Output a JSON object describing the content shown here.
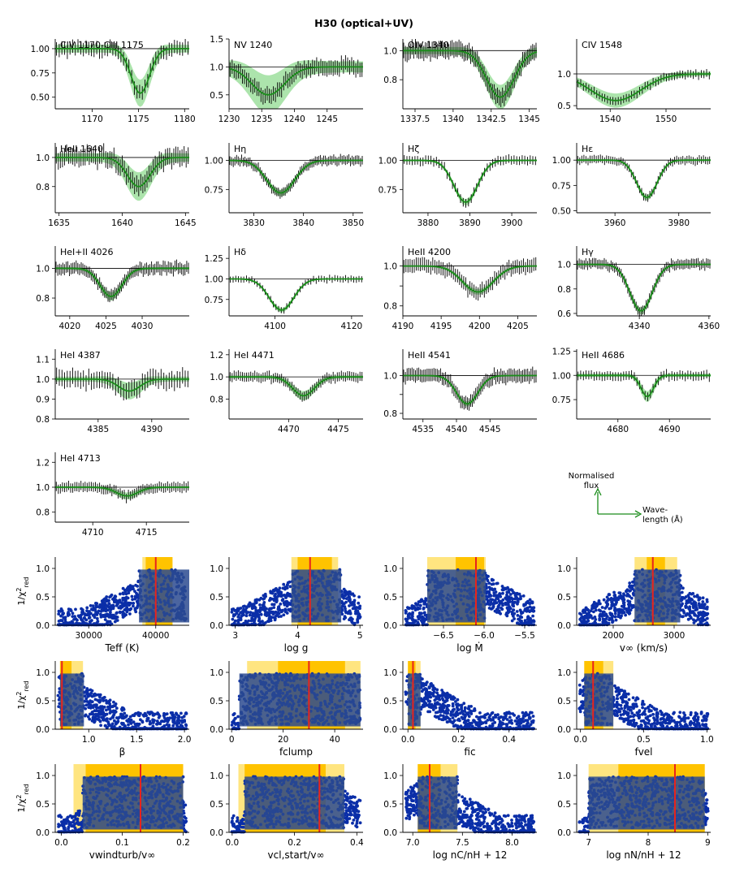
{
  "title": "H30 (optical+UV)",
  "colors": {
    "model": "#1a8c1a",
    "band": "#7fd67f",
    "points": "#0a2ea8",
    "best": "#e8231c",
    "band_inner": "#ffc300",
    "band_outer": "#ffe580"
  },
  "legend": {
    "y_label": "Normalised flux",
    "x_label": "Wavelength (Å)",
    "y_lines": [
      "Normalised",
      "flux"
    ],
    "x_lines": [
      "Wave-",
      "length (Å)"
    ]
  },
  "fit_ylabel": "1/χ²red",
  "chart_data": [
    {
      "type": "line",
      "title": "CIV 1170-CIII 1175",
      "xlim": [
        1166,
        1180.5
      ],
      "ylim": [
        0.38,
        1.1
      ],
      "xticks": [
        1170,
        1175,
        1180
      ],
      "yticks": [
        0.5,
        0.75,
        1.0
      ],
      "ytick_labels": [
        "0.50",
        "0.75",
        "1.00"
      ],
      "center": 1175.2,
      "depth": 0.46,
      "width": 1.0,
      "band": 0.1
    },
    {
      "type": "line",
      "title": "NV 1240",
      "xlim": [
        1230,
        1250.5
      ],
      "ylim": [
        0.25,
        1.5
      ],
      "xticks": [
        1230,
        1235,
        1240,
        1245
      ],
      "yticks": [
        0.5,
        1.0,
        1.5
      ],
      "ytick_labels": [
        "0.5",
        "1.0",
        "1.5"
      ],
      "center": 1236,
      "depth": 0.5,
      "width": 2.5,
      "band": 0.25
    },
    {
      "type": "line",
      "title": "OIV 1340",
      "xlim": [
        1336.7,
        1345.5
      ],
      "ylim": [
        0.6,
        1.08
      ],
      "xticks": [
        1337.5,
        1340.0,
        1342.5,
        1345.0
      ],
      "yticks": [
        0.8,
        1.0
      ],
      "ytick_labels": [
        "0.8",
        "1.0"
      ],
      "center": 1343.1,
      "depth": 0.32,
      "width": 0.9,
      "band": 0.06
    },
    {
      "type": "line",
      "title": "CIV 1548",
      "xlim": [
        1534,
        1558
      ],
      "ylim": [
        0.45,
        1.55
      ],
      "xticks": [
        1540,
        1550
      ],
      "yticks": [
        0.5,
        1.0
      ],
      "ytick_labels": [
        "0.5",
        "1.0"
      ],
      "center": 1541,
      "depth": 0.42,
      "width": 4.5,
      "band": 0.08
    },
    {
      "type": "line",
      "title": "HeII 1640",
      "xlim": [
        1634.7,
        1645.3
      ],
      "ylim": [
        0.62,
        1.1
      ],
      "xticks": [
        1635,
        1640,
        1645
      ],
      "yticks": [
        0.8,
        1.0
      ],
      "ytick_labels": [
        "0.8",
        "1.0"
      ],
      "center": 1641.3,
      "depth": 0.2,
      "width": 0.9,
      "band": 0.07
    },
    {
      "type": "line",
      "title": "Hη",
      "xlim": [
        3825,
        3852
      ],
      "ylim": [
        0.55,
        1.15
      ],
      "xticks": [
        3830,
        3840,
        3850
      ],
      "yticks": [
        0.75,
        1.0
      ],
      "ytick_labels": [
        "0.75",
        "1.00"
      ],
      "center": 3835.4,
      "depth": 0.28,
      "width": 2.8,
      "band": 0.02
    },
    {
      "type": "line",
      "title": "Hζ",
      "xlim": [
        3874,
        3906
      ],
      "ylim": [
        0.55,
        1.15
      ],
      "xticks": [
        3880,
        3890,
        3900
      ],
      "yticks": [
        0.75,
        1.0
      ],
      "ytick_labels": [
        "0.75",
        "1.00"
      ],
      "center": 3889,
      "depth": 0.36,
      "width": 2.8,
      "band": 0.02
    },
    {
      "type": "line",
      "title": "Hε",
      "xlim": [
        3948,
        3990
      ],
      "ylim": [
        0.48,
        1.17
      ],
      "xticks": [
        3960,
        3980
      ],
      "yticks": [
        0.5,
        0.75,
        1.0
      ],
      "ytick_labels": [
        "0.50",
        "0.75",
        "1.00"
      ],
      "center": 3970,
      "depth": 0.37,
      "width": 3.2,
      "band": 0.02
    },
    {
      "type": "line",
      "title": "HeI+II 4026",
      "xlim": [
        4018,
        4036.5
      ],
      "ylim": [
        0.68,
        1.15
      ],
      "xticks": [
        4020,
        4025,
        4030
      ],
      "yticks": [
        0.8,
        1.0
      ],
      "ytick_labels": [
        "0.8",
        "1.0"
      ],
      "center": 4025.7,
      "depth": 0.19,
      "width": 1.5,
      "band": 0.02
    },
    {
      "type": "line",
      "title": "Hδ",
      "xlim": [
        4088,
        4123
      ],
      "ylim": [
        0.55,
        1.4
      ],
      "xticks": [
        4100,
        4120
      ],
      "yticks": [
        0.75,
        1.0,
        1.25
      ],
      "ytick_labels": [
        "0.75",
        "1.00",
        "1.25"
      ],
      "center": 4101.7,
      "depth": 0.38,
      "width": 3.2,
      "band": 0.02
    },
    {
      "type": "line",
      "title": "HeII 4200",
      "xlim": [
        4190,
        4207.5
      ],
      "ylim": [
        0.75,
        1.1
      ],
      "xticks": [
        4190,
        4195,
        4200,
        4205
      ],
      "yticks": [
        0.8,
        0.9,
        1.0
      ],
      "ytick_labels": [
        "0.8",
        "",
        "1.0"
      ],
      "center": 4199.8,
      "depth": 0.13,
      "width": 2.0,
      "band": 0.01
    },
    {
      "type": "line",
      "title": "Hγ",
      "xlim": [
        4322,
        4360.5
      ],
      "ylim": [
        0.58,
        1.15
      ],
      "xticks": [
        4340,
        4360
      ],
      "yticks": [
        0.6,
        0.8,
        1.0
      ],
      "ytick_labels": [
        "0.6",
        "0.8",
        "1.0"
      ],
      "center": 4340.5,
      "depth": 0.38,
      "width": 3.2,
      "band": 0.02
    },
    {
      "type": "line",
      "title": "HeI 4387",
      "xlim": [
        4381,
        4393.5
      ],
      "ylim": [
        0.8,
        1.15
      ],
      "xticks": [
        4385,
        4390
      ],
      "yticks": [
        0.8,
        0.9,
        1.0,
        1.1
      ],
      "ytick_labels": [
        "0.8",
        "0.9",
        "1.0",
        "1.1"
      ],
      "center": 4387.9,
      "depth": 0.06,
      "width": 1.0,
      "band": 0.03
    },
    {
      "type": "line",
      "title": "HeI 4471",
      "xlim": [
        4464,
        4477.5
      ],
      "ylim": [
        0.62,
        1.25
      ],
      "xticks": [
        4470,
        4475
      ],
      "yticks": [
        0.8,
        1.0,
        1.2
      ],
      "ytick_labels": [
        "0.8",
        "1.0",
        "1.2"
      ],
      "center": 4471.5,
      "depth": 0.17,
      "width": 1.1,
      "band": 0.03
    },
    {
      "type": "line",
      "title": "HeII 4541",
      "xlim": [
        4532,
        4552
      ],
      "ylim": [
        0.77,
        1.14
      ],
      "xticks": [
        4535,
        4540,
        4545
      ],
      "yticks": [
        0.8,
        0.9,
        1.0
      ],
      "ytick_labels": [
        "0.8",
        "",
        "1.0"
      ],
      "center": 4541.6,
      "depth": 0.15,
      "width": 1.6,
      "band": 0.01
    },
    {
      "type": "line",
      "title": "HeII 4686",
      "xlim": [
        4672,
        4698
      ],
      "ylim": [
        0.55,
        1.27
      ],
      "xticks": [
        4680,
        4690
      ],
      "yticks": [
        0.75,
        1.0,
        1.25
      ],
      "ytick_labels": [
        "0.75",
        "1.00",
        "1.25"
      ],
      "center": 4685.7,
      "depth": 0.22,
      "width": 1.2,
      "band": 0.04
    },
    {
      "type": "line",
      "title": "HeI 4713",
      "xlim": [
        4706.5,
        4719
      ],
      "ylim": [
        0.72,
        1.28
      ],
      "xticks": [
        4710,
        4715
      ],
      "yticks": [
        0.8,
        1.0,
        1.2
      ],
      "ytick_labels": [
        "0.8",
        "1.0",
        "1.2"
      ],
      "center": 4713.2,
      "depth": 0.07,
      "width": 1.0,
      "band": 0.02
    },
    {
      "type": "scatter",
      "xlabel": "Teff (K)",
      "xlim": [
        25000,
        45000
      ],
      "ylim": [
        0,
        1.2
      ],
      "xticks": [
        30000,
        40000
      ],
      "xtick_labels": [
        "30000",
        "40000"
      ],
      "yticks": [
        0,
        0.5,
        1.0
      ],
      "ytick_labels": [
        "0.0",
        "0.5",
        "1.0"
      ],
      "best": 40000,
      "inner": [
        38500,
        42500
      ],
      "outer": [
        38000,
        42500
      ],
      "dark": [
        37500,
        45000
      ]
    },
    {
      "type": "scatter",
      "xlabel": "log g",
      "xlim": [
        2.9,
        5.05
      ],
      "ylim": [
        0,
        1.2
      ],
      "xticks": [
        3,
        4,
        5
      ],
      "xtick_labels": [
        "3",
        "4",
        "5"
      ],
      "yticks": [
        0,
        0.5,
        1.0
      ],
      "ytick_labels": [
        "0.0",
        "0.5",
        "1.0"
      ],
      "best": 4.2,
      "inner": [
        4.0,
        4.55
      ],
      "outer": [
        3.9,
        4.65
      ],
      "dark": [
        3.9,
        4.7
      ]
    },
    {
      "type": "scatter",
      "xlabel": "log Ṁ",
      "xlim": [
        -7.0,
        -5.35
      ],
      "ylim": [
        0,
        1.2
      ],
      "xticks": [
        -6.5,
        -6.0,
        -5.5
      ],
      "xtick_labels": [
        "−6.5",
        "−6.0",
        "−5.5"
      ],
      "yticks": [
        0,
        0.5,
        1.0
      ],
      "ytick_labels": [
        "0.0",
        "0.5",
        "1.0"
      ],
      "best": -6.1,
      "inner": [
        -6.35,
        -6.0
      ],
      "outer": [
        -6.7,
        -5.98
      ],
      "dark": [
        -6.7,
        -5.98
      ]
    },
    {
      "type": "scatter",
      "xlabel": "v∞ (km/s)",
      "xlim": [
        1400,
        3600
      ],
      "ylim": [
        0,
        1.2
      ],
      "xticks": [
        2000,
        3000
      ],
      "xtick_labels": [
        "2000",
        "3000"
      ],
      "yticks": [
        0,
        0.5,
        1.0
      ],
      "ytick_labels": [
        "0.0",
        "0.5",
        "1.0"
      ],
      "best": 2650,
      "inner": [
        2550,
        2850
      ],
      "outer": [
        2350,
        3050
      ],
      "dark": [
        2350,
        3100
      ]
    },
    {
      "type": "scatter",
      "xlabel": "β",
      "xlim": [
        0.65,
        2.05
      ],
      "ylim": [
        0,
        1.2
      ],
      "xticks": [
        1.0,
        1.5,
        2.0
      ],
      "xtick_labels": [
        "1.0",
        "1.5",
        "2.0"
      ],
      "yticks": [
        0,
        0.5,
        1.0
      ],
      "ytick_labels": [
        "0.0",
        "0.5",
        "1.0"
      ],
      "best": 0.72,
      "inner": [
        0.7,
        0.82
      ],
      "outer": [
        0.7,
        0.94
      ],
      "dark": [
        0.7,
        0.95
      ]
    },
    {
      "type": "scatter",
      "xlabel": "fclump",
      "xlim": [
        -1,
        51
      ],
      "ylim": [
        0,
        1.2
      ],
      "xticks": [
        0,
        20,
        40
      ],
      "xtick_labels": [
        "0",
        "20",
        "40"
      ],
      "yticks": [
        0,
        0.5,
        1.0
      ],
      "ytick_labels": [
        "0.0",
        "0.5",
        "1.0"
      ],
      "best": 30,
      "inner": [
        18,
        44
      ],
      "outer": [
        6,
        50
      ],
      "dark": [
        3,
        50
      ]
    },
    {
      "type": "scatter",
      "xlabel": "fic",
      "xlim": [
        -0.02,
        0.51
      ],
      "ylim": [
        0,
        1.2
      ],
      "xticks": [
        0.0,
        0.2,
        0.4
      ],
      "xtick_labels": [
        "0.0",
        "0.2",
        "0.4"
      ],
      "yticks": [
        0,
        0.5,
        1.0
      ],
      "ytick_labels": [
        "0.0",
        "0.5",
        "1.0"
      ],
      "best": 0.02,
      "inner": [
        0.0,
        0.03
      ],
      "outer": [
        0.0,
        0.05
      ],
      "dark": [
        0.0,
        0.05
      ]
    },
    {
      "type": "scatter",
      "xlabel": "fvel",
      "xlim": [
        -0.03,
        1.03
      ],
      "ylim": [
        0,
        1.2
      ],
      "xticks": [
        0.0,
        0.5,
        1.0
      ],
      "xtick_labels": [
        "0.0",
        "0.5",
        "1.0"
      ],
      "yticks": [
        0,
        0.5,
        1.0
      ],
      "ytick_labels": [
        "0.0",
        "0.5",
        "1.0"
      ],
      "best": 0.1,
      "inner": [
        0.03,
        0.18
      ],
      "outer": [
        0.03,
        0.26
      ],
      "dark": [
        0.03,
        0.26
      ]
    },
    {
      "type": "scatter",
      "xlabel": "vwindturb/v∞",
      "xlim": [
        -0.01,
        0.21
      ],
      "ylim": [
        0,
        1.2
      ],
      "xticks": [
        0.0,
        0.1,
        0.2
      ],
      "xtick_labels": [
        "0.0",
        "0.1",
        "0.2"
      ],
      "yticks": [
        0,
        0.5,
        1.0
      ],
      "ytick_labels": [
        "0.0",
        "0.5",
        "1.0"
      ],
      "best": 0.13,
      "inner": [
        0.04,
        0.2
      ],
      "outer": [
        0.02,
        0.2
      ],
      "dark": [
        0.035,
        0.2
      ]
    },
    {
      "type": "scatter",
      "xlabel": "vcl,start/v∞",
      "xlim": [
        -0.01,
        0.42
      ],
      "ylim": [
        0,
        1.2
      ],
      "xticks": [
        0.0,
        0.2,
        0.4
      ],
      "xtick_labels": [
        "0.0",
        "0.2",
        "0.4"
      ],
      "yticks": [
        0,
        0.5,
        1.0
      ],
      "ytick_labels": [
        "0.0",
        "0.5",
        "1.0"
      ],
      "best": 0.28,
      "inner": [
        0.04,
        0.3
      ],
      "outer": [
        0.02,
        0.36
      ],
      "dark": [
        0.04,
        0.36
      ]
    },
    {
      "type": "scatter",
      "xlabel": "log nC/nH + 12",
      "xlim": [
        6.9,
        8.25
      ],
      "ylim": [
        0,
        1.2
      ],
      "xticks": [
        7.0,
        7.5,
        8.0
      ],
      "xtick_labels": [
        "7.0",
        "7.5",
        "8.0"
      ],
      "yticks": [
        0,
        0.5,
        1.0
      ],
      "ytick_labels": [
        "0.0",
        "0.5",
        "1.0"
      ],
      "best": 7.17,
      "inner": [
        7.05,
        7.28
      ],
      "outer": [
        7.05,
        7.45
      ],
      "dark": [
        7.05,
        7.45
      ]
    },
    {
      "type": "scatter",
      "xlabel": "log nN/nH + 12",
      "xlim": [
        6.8,
        9.05
      ],
      "ylim": [
        0,
        1.2
      ],
      "xticks": [
        7,
        8,
        9
      ],
      "xtick_labels": [
        "7",
        "8",
        "9"
      ],
      "yticks": [
        0,
        0.5,
        1.0
      ],
      "ytick_labels": [
        "0.0",
        "0.5",
        "1.0"
      ],
      "best": 8.45,
      "inner": [
        7.5,
        8.95
      ],
      "outer": [
        7.0,
        8.95
      ],
      "dark": [
        7.0,
        8.95
      ]
    }
  ]
}
